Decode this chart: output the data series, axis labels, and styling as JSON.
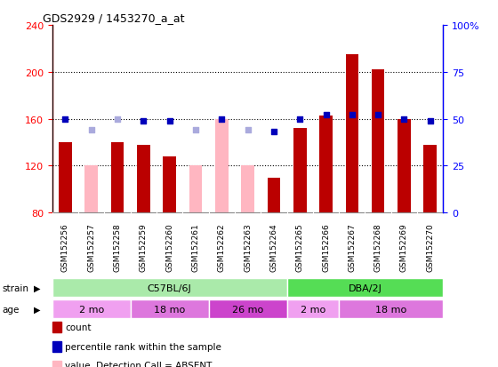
{
  "title": "GDS2929 / 1453270_a_at",
  "samples": [
    "GSM152256",
    "GSM152257",
    "GSM152258",
    "GSM152259",
    "GSM152260",
    "GSM152261",
    "GSM152262",
    "GSM152263",
    "GSM152264",
    "GSM152265",
    "GSM152266",
    "GSM152267",
    "GSM152268",
    "GSM152269",
    "GSM152270"
  ],
  "count_values": [
    140,
    null,
    140,
    138,
    128,
    null,
    null,
    null,
    110,
    152,
    163,
    215,
    202,
    160,
    138
  ],
  "count_absent": [
    null,
    120,
    null,
    null,
    null,
    120,
    160,
    120,
    null,
    null,
    null,
    null,
    null,
    null,
    null
  ],
  "rank_values": [
    50,
    null,
    null,
    49,
    49,
    null,
    50,
    null,
    43,
    50,
    52,
    52,
    52,
    50,
    49
  ],
  "rank_absent": [
    null,
    44,
    50,
    null,
    null,
    44,
    null,
    44,
    null,
    null,
    null,
    null,
    null,
    null,
    null
  ],
  "ylim_left": [
    80,
    240
  ],
  "ylim_right": [
    0,
    100
  ],
  "yticks_left": [
    80,
    120,
    160,
    200,
    240
  ],
  "yticks_right": [
    0,
    25,
    50,
    75,
    100
  ],
  "ytick_labels_right": [
    "0",
    "25",
    "50",
    "75",
    "100%"
  ],
  "strain_groups": [
    {
      "label": "C57BL/6J",
      "start": 0,
      "end": 9,
      "color": "#AAEAAA"
    },
    {
      "label": "DBA/2J",
      "start": 9,
      "end": 15,
      "color": "#55DD55"
    }
  ],
  "age_groups": [
    {
      "label": "2 mo",
      "start": 0,
      "end": 3,
      "color": "#F0A0F0"
    },
    {
      "label": "18 mo",
      "start": 3,
      "end": 6,
      "color": "#DD77DD"
    },
    {
      "label": "26 mo",
      "start": 6,
      "end": 9,
      "color": "#CC44CC"
    },
    {
      "label": "2 mo",
      "start": 9,
      "end": 11,
      "color": "#F0A0F0"
    },
    {
      "label": "18 mo",
      "start": 11,
      "end": 15,
      "color": "#DD77DD"
    }
  ],
  "color_count": "#BB0000",
  "color_count_absent": "#FFB6C1",
  "color_rank": "#0000BB",
  "color_rank_absent": "#AAAADD",
  "bar_width": 0.5,
  "dot_size": 22,
  "bg_color": "#FFFFFF",
  "tick_bg_color": "#C8C8C8",
  "grid_yticks": [
    120,
    160,
    200
  ]
}
